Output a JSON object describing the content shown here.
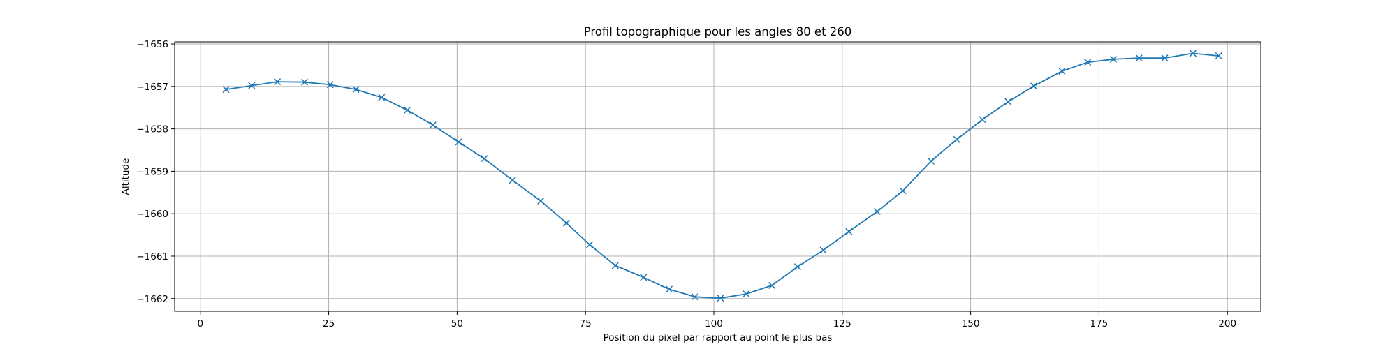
{
  "chart_data": {
    "type": "line",
    "title": "Profil topographique pour les angles 80 et 260",
    "xlabel": "Position du pixel par rapport au point le plus bas",
    "ylabel": "Altitude",
    "xlim": [
      -5,
      206.5
    ],
    "ylim": [
      -1662.3,
      -1655.95
    ],
    "xticks": [
      0,
      25,
      50,
      75,
      100,
      125,
      150,
      175,
      200
    ],
    "xtick_labels": [
      "0",
      "25",
      "50",
      "75",
      "100",
      "125",
      "150",
      "175",
      "200"
    ],
    "yticks": [
      -1656,
      -1657,
      -1658,
      -1659,
      -1660,
      -1661,
      -1662
    ],
    "ytick_labels": [
      "−1656",
      "−1657",
      "−1658",
      "−1659",
      "−1660",
      "−1661",
      "−1662"
    ],
    "grid": true,
    "color": "#1f77b4",
    "marker": "x",
    "series": [
      {
        "x": [
          5,
          10,
          15,
          20.3,
          25.3,
          30.3,
          35.3,
          40.3,
          45.3,
          50.3,
          55.3,
          60.8,
          66.3,
          71.3,
          75.8,
          80.8,
          86.3,
          91.3,
          96.3,
          101.3,
          106.3,
          111.3,
          116.3,
          121.3,
          126.3,
          131.8,
          136.8,
          142.3,
          147.3,
          152.3,
          157.3,
          162.3,
          167.8,
          172.8,
          177.8,
          182.8,
          187.8,
          193.3,
          198.3
        ],
        "y": [
          -1657.07,
          -1656.98,
          -1656.89,
          -1656.9,
          -1656.96,
          -1657.07,
          -1657.26,
          -1657.56,
          -1657.91,
          -1658.31,
          -1658.7,
          -1659.21,
          -1659.7,
          -1660.22,
          -1660.73,
          -1661.22,
          -1661.5,
          -1661.78,
          -1661.96,
          -1661.99,
          -1661.89,
          -1661.69,
          -1661.25,
          -1660.86,
          -1660.42,
          -1659.95,
          -1659.46,
          -1658.76,
          -1658.25,
          -1657.78,
          -1657.36,
          -1656.99,
          -1656.64,
          -1656.43,
          -1656.36,
          -1656.33,
          -1656.33,
          -1656.22,
          -1656.28
        ]
      }
    ]
  }
}
